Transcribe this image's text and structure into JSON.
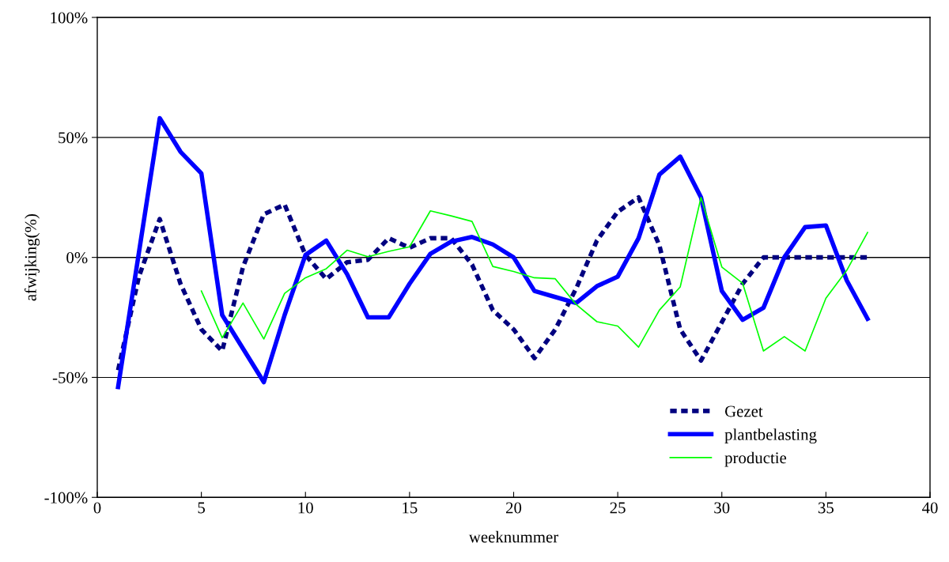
{
  "chart_data": {
    "type": "line",
    "xlabel": "weeknummer",
    "ylabel": "afwijking(%)",
    "xlim": [
      0,
      40
    ],
    "xticks": [
      0,
      5,
      10,
      15,
      20,
      25,
      30,
      35,
      40
    ],
    "ylim": [
      -100,
      100
    ],
    "yticks": [
      {
        "value": -100,
        "label": "-100%"
      },
      {
        "value": -50,
        "label": "-50%"
      },
      {
        "value": 0,
        "label": "0%"
      },
      {
        "value": 50,
        "label": "50%"
      },
      {
        "value": 100,
        "label": "100%"
      }
    ],
    "grid": "y",
    "legend": "bottom right",
    "x": [
      1,
      2,
      3,
      4,
      5,
      6,
      7,
      8,
      9,
      10,
      11,
      12,
      13,
      14,
      15,
      16,
      17,
      18,
      19,
      20,
      21,
      22,
      23,
      24,
      25,
      26,
      27,
      28,
      29,
      30,
      31,
      32,
      33,
      34,
      35,
      36,
      37
    ],
    "series": [
      {
        "name": "Gezet",
        "color": "#000080",
        "line_style": "dashed",
        "values": [
          -47,
          -8,
          16,
          -11,
          -30,
          -39,
          -4,
          18,
          22,
          1,
          -9,
          -2,
          -1,
          8,
          4,
          8,
          8,
          -3,
          -22,
          -30,
          -42,
          -30,
          -13,
          7,
          19,
          25,
          5,
          -30,
          -43,
          -27,
          -11,
          0,
          0,
          0,
          0,
          0,
          0
        ]
      },
      {
        "name": "plantbelasting",
        "color": "#0000ff",
        "line_style": "solid",
        "values": [
          -54,
          2,
          58,
          44,
          35,
          -24,
          -38,
          -52,
          -24,
          1,
          7,
          -7,
          -25,
          -25,
          -11,
          1.5,
          6.6,
          8.5,
          5.4,
          0,
          -14,
          -16.5,
          -19,
          -12,
          -8,
          8,
          34.5,
          42,
          25,
          -14,
          -26,
          -21,
          0,
          12.6,
          13.3,
          -9.6,
          -25.6
        ]
      },
      {
        "name": "productie",
        "color": "#00ff00",
        "line_style": "solid",
        "values": [
          null,
          null,
          null,
          null,
          -14,
          -33.5,
          -19,
          -34,
          -15,
          -8.5,
          -4.7,
          3,
          0.3,
          2.5,
          4.4,
          19.4,
          17.3,
          15,
          -3.8,
          -5.9,
          -8.5,
          -8.9,
          -19.6,
          -26.8,
          -28.6,
          -37.4,
          -22,
          -12.3,
          25,
          -4,
          -10.8,
          -39,
          -33,
          -39,
          -17,
          -5.4,
          10.4
        ]
      }
    ]
  }
}
